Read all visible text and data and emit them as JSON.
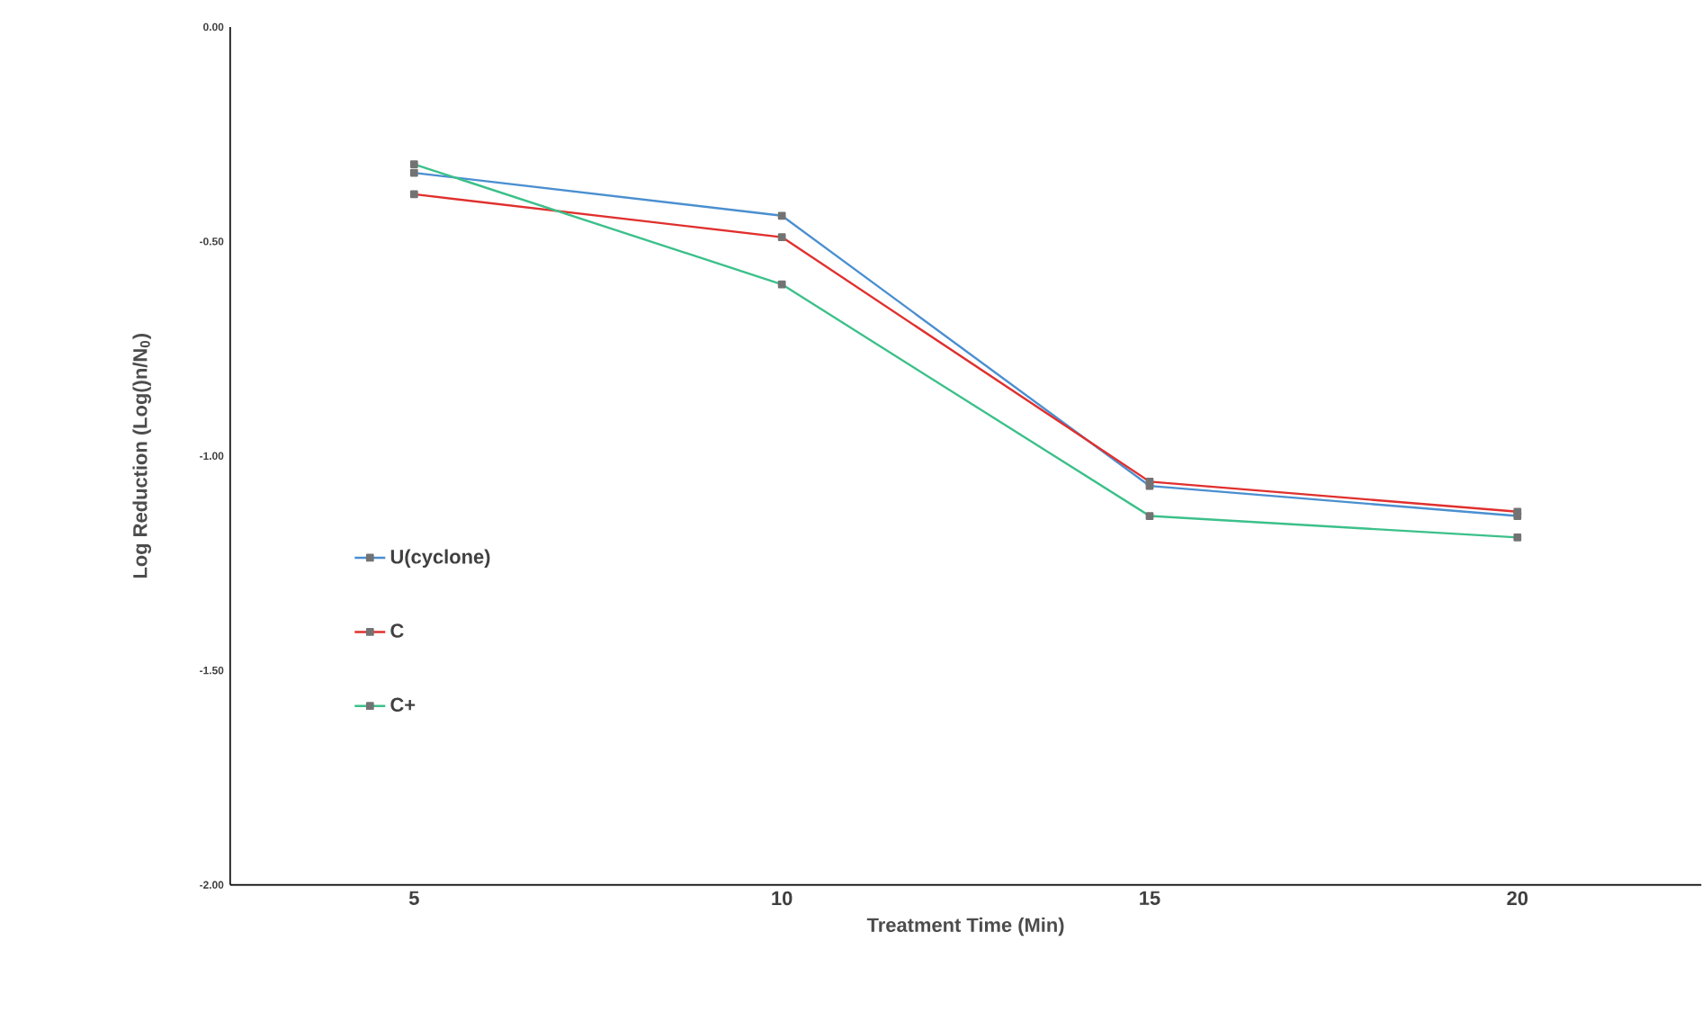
{
  "chart_data": {
    "type": "line",
    "xlabel": "Treatment Time (Min)",
    "ylabel": "Log Reduction (Log()n/N$_{0}$)",
    "categories": [
      "5",
      "10",
      "15",
      "20"
    ],
    "series": [
      {
        "name": "U(cyclone)",
        "color": "#4a8fd0",
        "values": [
          -0.34,
          -0.44,
          -1.07,
          -1.14
        ]
      },
      {
        "name": "C",
        "color": "#e0302e",
        "values": [
          -0.39,
          -0.49,
          -1.06,
          -1.13
        ]
      },
      {
        "name": "C+",
        "color": "#3cc08a",
        "values": [
          -0.32,
          -0.6,
          -1.14,
          -1.19
        ]
      }
    ],
    "ylim": [
      -2,
      0
    ],
    "yticks": [
      {
        "value": -2,
        "label": "-2.00"
      },
      {
        "value": -1.5,
        "label": "-1.50"
      },
      {
        "value": -1,
        "label": "-1.00"
      },
      {
        "value": -0.5,
        "label": "-0.50"
      },
      {
        "value": 0,
        "label": "0.00"
      }
    ],
    "grid": false,
    "legend": "left",
    "marker": "square",
    "line_style": "solid"
  }
}
